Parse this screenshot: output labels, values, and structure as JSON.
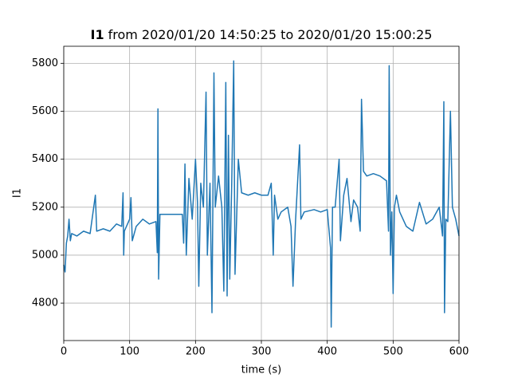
{
  "chart_data": {
    "type": "line",
    "title_bold": "I1",
    "title": "from 2020/01/20 14:50:25 to 2020/01/20 15:00:25",
    "x_label": "time (s)",
    "y_label": "I1",
    "color": "#1f77b4",
    "grid": true,
    "xlim": [
      0,
      600
    ],
    "ylim": [
      4644,
      5871
    ],
    "xticks": [
      0,
      100,
      200,
      300,
      400,
      500,
      600
    ],
    "yticks": [
      4800,
      5000,
      5200,
      5400,
      5600,
      5800
    ],
    "x": [
      0,
      2,
      4,
      6,
      8,
      10,
      12,
      20,
      30,
      40,
      48,
      50,
      60,
      70,
      80,
      88,
      90,
      91,
      92,
      100,
      102,
      104,
      110,
      120,
      130,
      140,
      142,
      143,
      144,
      146,
      160,
      175,
      180,
      182,
      184,
      186,
      190,
      195,
      200,
      203,
      205,
      208,
      212,
      216,
      218,
      222,
      225,
      228,
      230,
      235,
      240,
      243,
      246,
      248,
      250,
      252,
      255,
      258,
      260,
      265,
      270,
      280,
      290,
      300,
      310,
      315,
      318,
      320,
      325,
      330,
      340,
      345,
      348,
      352,
      358,
      360,
      365,
      380,
      390,
      400,
      405,
      406,
      408,
      412,
      418,
      420,
      425,
      430,
      436,
      440,
      446,
      450,
      452,
      455,
      460,
      470,
      480,
      490,
      493,
      494,
      496,
      498,
      500,
      502,
      505,
      510,
      520,
      530,
      540,
      550,
      560,
      570,
      575,
      577,
      578,
      580,
      583,
      587,
      590,
      595,
      600
    ],
    "values": [
      4960,
      4930,
      5050,
      5080,
      5150,
      5060,
      5090,
      5080,
      5100,
      5090,
      5250,
      5100,
      5110,
      5100,
      5130,
      5120,
      5260,
      5000,
      5100,
      5150,
      5240,
      5060,
      5120,
      5150,
      5130,
      5140,
      5010,
      5610,
      4900,
      5170,
      5170,
      5170,
      5170,
      5050,
      5380,
      5000,
      5320,
      5150,
      5400,
      5220,
      4870,
      5300,
      5200,
      5680,
      5000,
      5300,
      4760,
      5760,
      5200,
      5330,
      5200,
      4850,
      5720,
      4830,
      5500,
      4900,
      5300,
      5810,
      4920,
      5400,
      5260,
      5250,
      5260,
      5250,
      5250,
      5300,
      5000,
      5250,
      5150,
      5180,
      5200,
      5120,
      4870,
      5150,
      5460,
      5150,
      5180,
      5190,
      5180,
      5190,
      5030,
      4700,
      5200,
      5200,
      5400,
      5060,
      5250,
      5320,
      5140,
      5230,
      5200,
      5100,
      5650,
      5350,
      5330,
      5340,
      5330,
      5310,
      5100,
      5790,
      5000,
      5180,
      4840,
      5200,
      5250,
      5180,
      5120,
      5100,
      5220,
      5130,
      5150,
      5200,
      5080,
      5640,
      4760,
      5150,
      5140,
      5600,
      5200,
      5150,
      5080
    ]
  }
}
